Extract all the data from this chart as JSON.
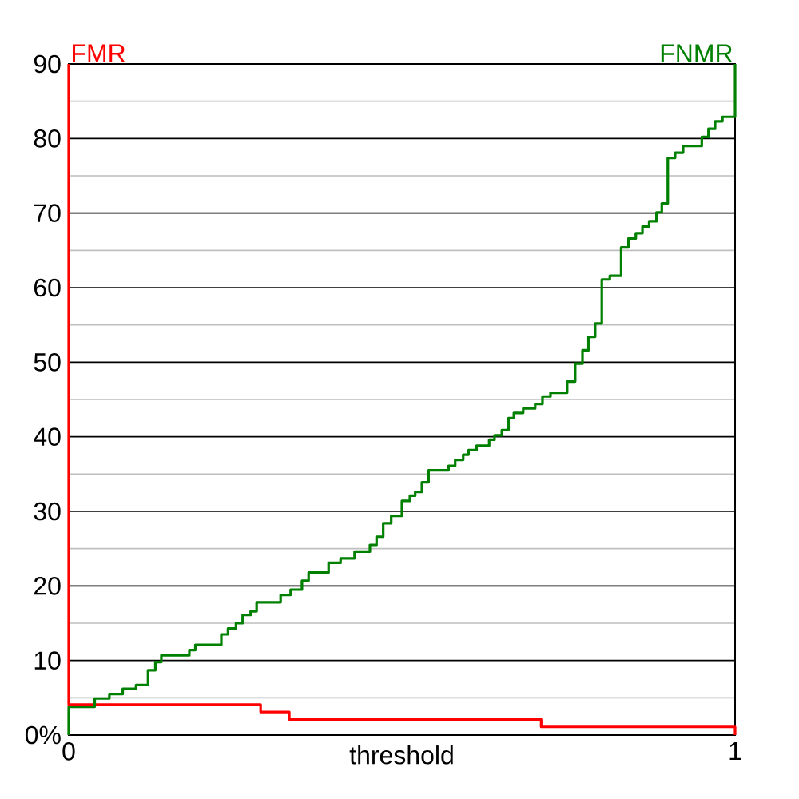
{
  "chart_data": {
    "type": "step",
    "xlabel": "threshold",
    "xlim": [
      0,
      1
    ],
    "xticks": [
      0,
      1
    ],
    "ylim": [
      0,
      90
    ],
    "yticks": [
      {
        "value": 0,
        "label": "0%"
      },
      {
        "value": 5,
        "label": null
      },
      10,
      {
        "value": 15,
        "label": null
      },
      20,
      {
        "value": 25,
        "label": null
      },
      30,
      {
        "value": 35,
        "label": null
      },
      40,
      {
        "value": 45,
        "label": null
      },
      50,
      {
        "value": 55,
        "label": null
      },
      60,
      {
        "value": 65,
        "label": null
      },
      70,
      {
        "value": 75,
        "label": null
      },
      80,
      {
        "value": 85,
        "label": null
      },
      90
    ],
    "grid": "y",
    "legend": false,
    "marker": "none",
    "line_style": "solid",
    "series": [
      {
        "name": "FMR",
        "color": "#ff0000",
        "x": [
          0,
          0,
          0.288,
          0.331,
          0.709,
          1,
          1
        ],
        "values": [
          90,
          4.1,
          3.1,
          2.1,
          1.1,
          1.1,
          0
        ]
      },
      {
        "name": "FNMR",
        "color": "#008000",
        "x": [
          0,
          0,
          0.039,
          0.061,
          0.081,
          0.101,
          0.119,
          0.13,
          0.139,
          0.181,
          0.19,
          0.229,
          0.239,
          0.251,
          0.261,
          0.273,
          0.282,
          0.318,
          0.333,
          0.35,
          0.36,
          0.39,
          0.408,
          0.429,
          0.452,
          0.462,
          0.472,
          0.484,
          0.5,
          0.512,
          0.52,
          0.53,
          0.54,
          0.57,
          0.58,
          0.592,
          0.6,
          0.612,
          0.631,
          0.639,
          0.65,
          0.66,
          0.668,
          0.682,
          0.7,
          0.711,
          0.723,
          0.748,
          0.76,
          0.771,
          0.78,
          0.79,
          0.8,
          0.812,
          0.829,
          0.84,
          0.851,
          0.861,
          0.871,
          0.882,
          0.89,
          0.899,
          0.91,
          0.922,
          0.95,
          0.96,
          0.97,
          0.981,
          1
        ],
        "values": [
          0,
          3.8,
          4.9,
          5.5,
          6.2,
          6.7,
          8.7,
          9.8,
          10.7,
          11.4,
          12.1,
          13.5,
          14.3,
          15.0,
          16.1,
          16.6,
          17.8,
          18.8,
          19.5,
          20.7,
          21.8,
          23.1,
          23.7,
          24.6,
          25.5,
          26.6,
          28.4,
          29.4,
          31.4,
          32.1,
          32.6,
          33.9,
          35.5,
          36.1,
          36.9,
          37.6,
          38.2,
          38.8,
          39.6,
          40.2,
          40.9,
          42.5,
          43.2,
          43.8,
          44.4,
          45.4,
          45.9,
          47.4,
          49.8,
          51.6,
          53.4,
          55.2,
          61.1,
          61.6,
          65.4,
          66.6,
          67.3,
          68.2,
          68.9,
          70.1,
          71.3,
          77.4,
          78.1,
          79.0,
          80.2,
          81.3,
          82.3,
          82.9,
          90
        ]
      }
    ]
  }
}
